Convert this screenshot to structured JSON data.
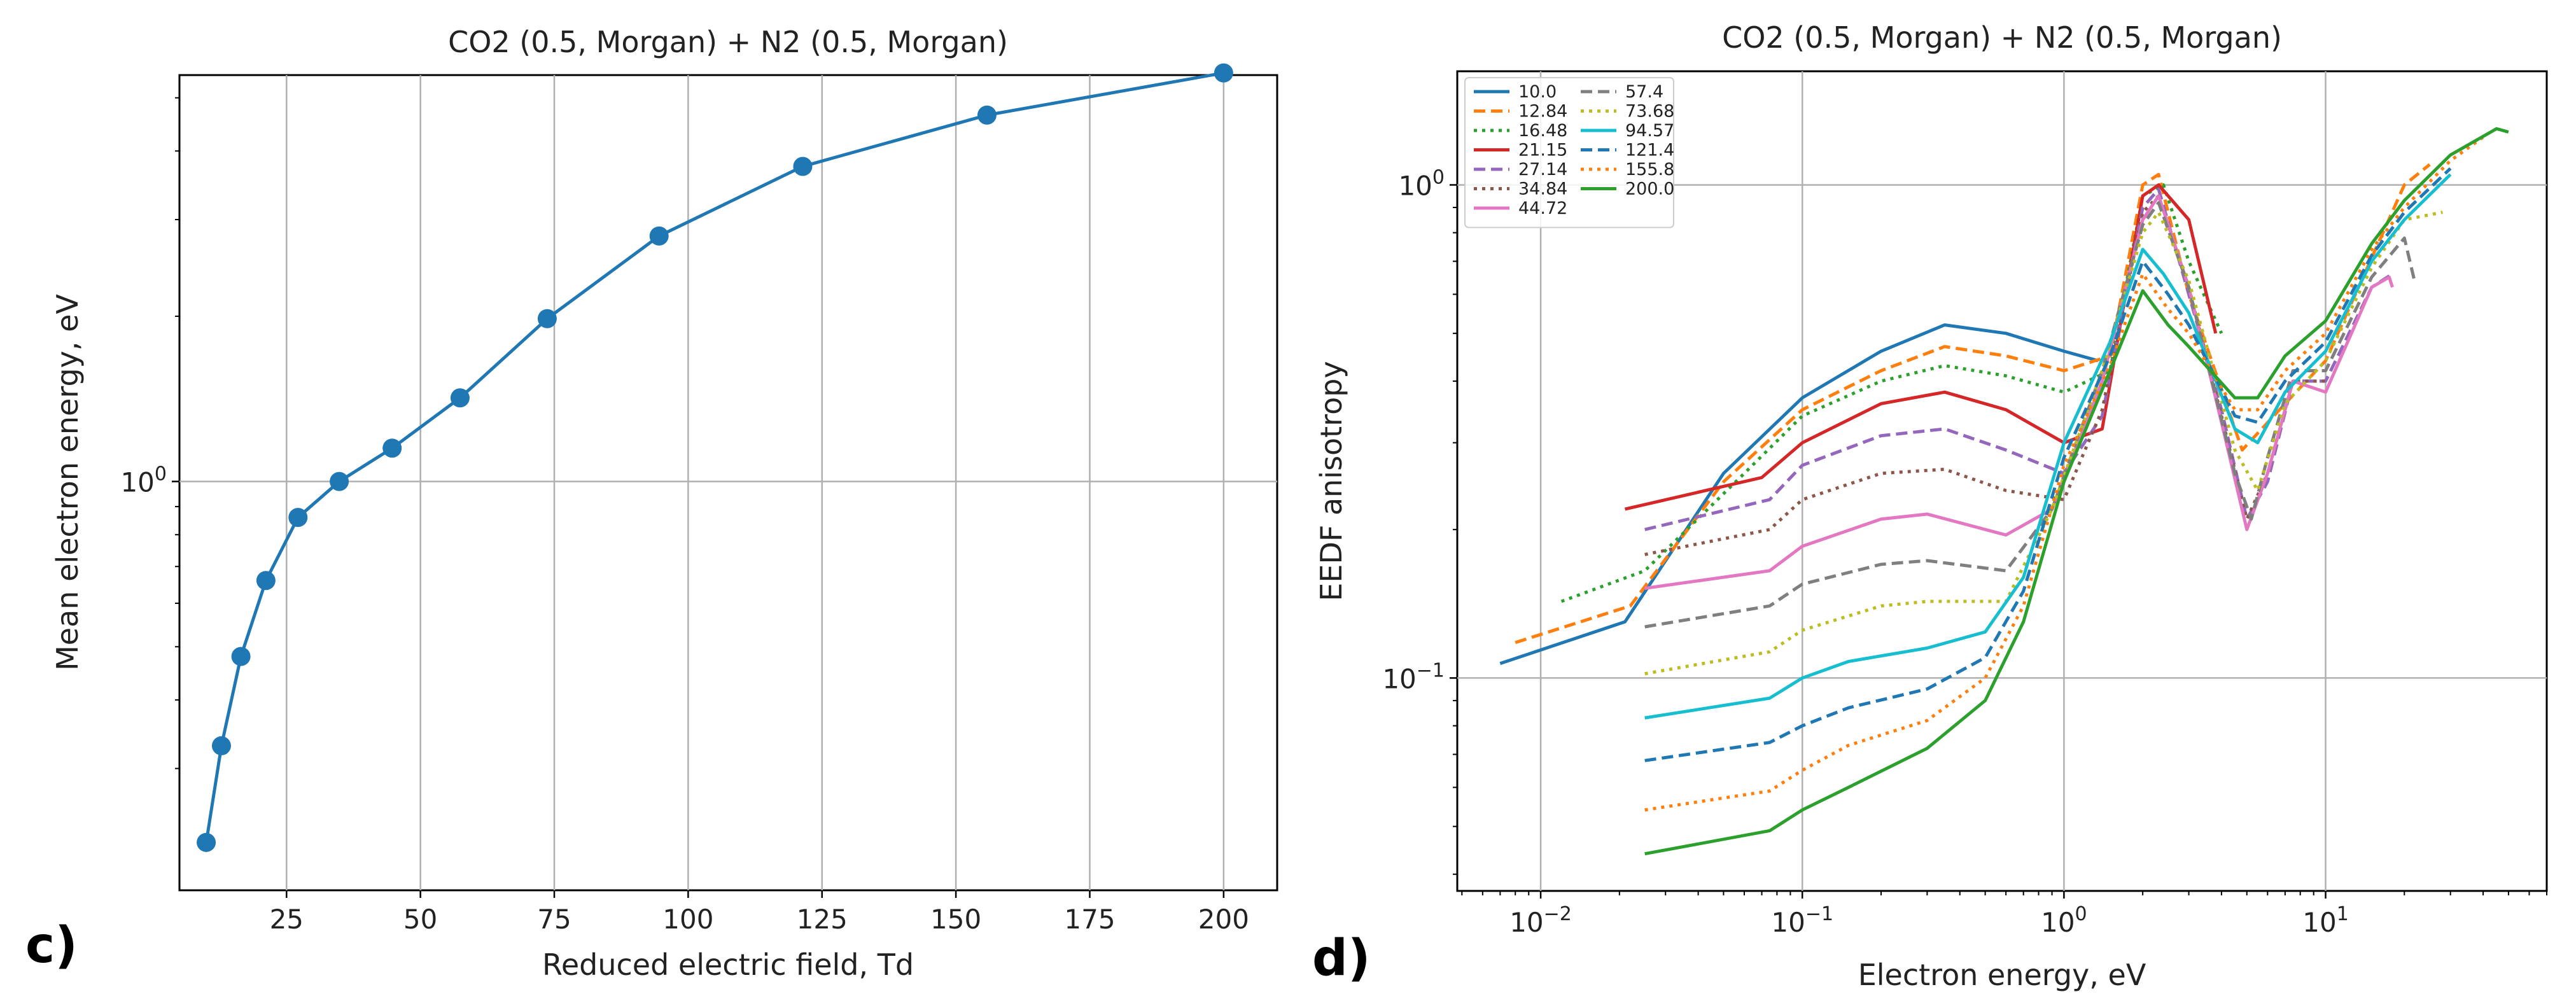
{
  "chart_data": [
    {
      "panel_label": "c)",
      "type": "line",
      "title": "CO2 (0.5, Morgan) + N2 (0.5, Morgan)",
      "xlabel": "Reduced electric field, Td",
      "ylabel": "Mean electron energy, eV",
      "xscale": "linear",
      "yscale": "log",
      "xlim": [
        5,
        210
      ],
      "ylim": [
        0.18,
        5.5
      ],
      "xticks": [
        25,
        50,
        75,
        100,
        125,
        150,
        175,
        200
      ],
      "xtick_labels": [
        "25",
        "50",
        "75",
        "100",
        "125",
        "150",
        "175",
        "200"
      ],
      "yticks": [
        1
      ],
      "ytick_labels": [
        "10^0"
      ],
      "grid": true,
      "color": "#1f77b4",
      "x": [
        10.0,
        12.84,
        16.48,
        21.15,
        27.14,
        34.84,
        44.72,
        57.4,
        73.68,
        94.57,
        121.4,
        155.8,
        200.0
      ],
      "y": [
        0.22,
        0.33,
        0.48,
        0.66,
        0.86,
        1.0,
        1.15,
        1.42,
        1.98,
        2.8,
        3.75,
        4.65,
        5.55
      ]
    },
    {
      "panel_label": "d)",
      "type": "line",
      "title": "CO2 (0.5, Morgan) + N2 (0.5, Morgan)",
      "xlabel": "Electron energy, eV",
      "ylabel": "EEDF anisotropy",
      "xscale": "log",
      "yscale": "log",
      "xlim": [
        0.0048,
        70
      ],
      "ylim": [
        0.037,
        1.7
      ],
      "xticks": [
        0.01,
        0.1,
        1,
        10
      ],
      "xtick_labels": [
        "10^-2",
        "10^-1",
        "10^0",
        "10^1"
      ],
      "yticks": [
        0.1,
        1
      ],
      "ytick_labels": [
        "10^-1",
        "10^0"
      ],
      "grid": true,
      "legend_position": "top-left",
      "series": [
        {
          "name": "10.0",
          "color": "#1f77b4",
          "style": "solid",
          "points": [
            [
              0.007,
              0.107
            ],
            [
              0.021,
              0.13
            ],
            [
              0.05,
              0.26
            ],
            [
              0.1,
              0.37
            ],
            [
              0.2,
              0.46
            ],
            [
              0.35,
              0.52
            ],
            [
              0.6,
              0.5
            ],
            [
              1.0,
              0.46
            ],
            [
              1.35,
              0.44
            ]
          ]
        },
        {
          "name": "12.84",
          "color": "#ff7f0e",
          "style": "dashed",
          "points": [
            [
              0.008,
              0.118
            ],
            [
              0.022,
              0.14
            ],
            [
              0.05,
              0.25
            ],
            [
              0.1,
              0.35
            ],
            [
              0.2,
              0.42
            ],
            [
              0.35,
              0.47
            ],
            [
              0.6,
              0.45
            ],
            [
              1.0,
              0.42
            ],
            [
              1.5,
              0.45
            ],
            [
              2.0,
              1.0
            ],
            [
              2.3,
              1.05
            ],
            [
              3.0,
              0.6
            ],
            [
              4.8,
              0.29
            ],
            [
              7.0,
              0.36
            ],
            [
              10,
              0.44
            ],
            [
              20,
              1.0
            ],
            [
              25,
              1.1
            ]
          ]
        },
        {
          "name": "16.48",
          "color": "#2ca02c",
          "style": "dotted",
          "points": [
            [
              0.012,
              0.143
            ],
            [
              0.025,
              0.165
            ],
            [
              0.06,
              0.26
            ],
            [
              0.1,
              0.34
            ],
            [
              0.2,
              0.4
            ],
            [
              0.35,
              0.43
            ],
            [
              0.6,
              0.41
            ],
            [
              1.0,
              0.38
            ],
            [
              1.5,
              0.42
            ],
            [
              2.0,
              0.95
            ],
            [
              2.4,
              1.0
            ],
            [
              3.0,
              0.7
            ],
            [
              4.0,
              0.5
            ]
          ]
        },
        {
          "name": "21.15",
          "color": "#d62728",
          "style": "solid",
          "points": [
            [
              0.021,
              0.22
            ],
            [
              0.07,
              0.255
            ],
            [
              0.1,
              0.3
            ],
            [
              0.2,
              0.36
            ],
            [
              0.35,
              0.38
            ],
            [
              0.6,
              0.35
            ],
            [
              1.0,
              0.3
            ],
            [
              1.4,
              0.32
            ],
            [
              2.0,
              0.95
            ],
            [
              2.3,
              1.0
            ],
            [
              3.0,
              0.85
            ],
            [
              3.8,
              0.5
            ]
          ]
        },
        {
          "name": "27.14",
          "color": "#9467bd",
          "style": "dashed",
          "points": [
            [
              0.025,
              0.2
            ],
            [
              0.075,
              0.23
            ],
            [
              0.1,
              0.27
            ],
            [
              0.2,
              0.31
            ],
            [
              0.35,
              0.32
            ],
            [
              0.6,
              0.29
            ],
            [
              1.0,
              0.26
            ],
            [
              1.4,
              0.34
            ],
            [
              2.0,
              0.9
            ],
            [
              2.3,
              0.98
            ],
            [
              3.0,
              0.6
            ],
            [
              4.0,
              0.35
            ],
            [
              5.0,
              0.21
            ],
            [
              6.0,
              0.25
            ],
            [
              7.5,
              0.4
            ],
            [
              10,
              0.4
            ],
            [
              15,
              0.62
            ],
            [
              18,
              0.66
            ]
          ]
        },
        {
          "name": "34.84",
          "color": "#8c564b",
          "style": "dotted",
          "points": [
            [
              0.025,
              0.178
            ],
            [
              0.075,
              0.2
            ],
            [
              0.1,
              0.23
            ],
            [
              0.2,
              0.26
            ],
            [
              0.35,
              0.265
            ],
            [
              0.6,
              0.24
            ],
            [
              1.0,
              0.23
            ],
            [
              1.4,
              0.35
            ],
            [
              2.0,
              0.88
            ],
            [
              2.3,
              0.95
            ],
            [
              3.0,
              0.62
            ],
            [
              4.0,
              0.34
            ],
            [
              5.0,
              0.21
            ],
            [
              6.0,
              0.26
            ],
            [
              7.5,
              0.4
            ],
            [
              10,
              0.4
            ]
          ]
        },
        {
          "name": "44.72",
          "color": "#e377c2",
          "style": "solid",
          "points": [
            [
              0.025,
              0.152
            ],
            [
              0.075,
              0.165
            ],
            [
              0.1,
              0.185
            ],
            [
              0.2,
              0.21
            ],
            [
              0.3,
              0.215
            ],
            [
              0.6,
              0.195
            ],
            [
              0.9,
              0.22
            ],
            [
              1.4,
              0.4
            ],
            [
              2.0,
              0.85
            ],
            [
              2.3,
              0.95
            ],
            [
              3.0,
              0.62
            ],
            [
              4.0,
              0.33
            ],
            [
              5.0,
              0.2
            ],
            [
              6.0,
              0.26
            ],
            [
              7.5,
              0.4
            ],
            [
              10,
              0.38
            ],
            [
              15,
              0.62
            ],
            [
              17.5,
              0.65
            ],
            [
              18,
              0.62
            ]
          ]
        },
        {
          "name": "57.4",
          "color": "#7f7f7f",
          "style": "dashed",
          "points": [
            [
              0.025,
              0.127
            ],
            [
              0.075,
              0.14
            ],
            [
              0.1,
              0.155
            ],
            [
              0.2,
              0.17
            ],
            [
              0.3,
              0.173
            ],
            [
              0.6,
              0.165
            ],
            [
              0.9,
              0.22
            ],
            [
              1.4,
              0.42
            ],
            [
              2.0,
              0.83
            ],
            [
              2.3,
              0.92
            ],
            [
              3.0,
              0.62
            ],
            [
              4.5,
              0.26
            ],
            [
              5.2,
              0.21
            ],
            [
              6.0,
              0.28
            ],
            [
              7.5,
              0.42
            ],
            [
              10,
              0.42
            ],
            [
              15,
              0.65
            ],
            [
              20,
              0.78
            ],
            [
              22,
              0.63
            ]
          ]
        },
        {
          "name": "73.68",
          "color": "#bcbd22",
          "style": "dotted",
          "points": [
            [
              0.025,
              0.102
            ],
            [
              0.075,
              0.113
            ],
            [
              0.1,
              0.125
            ],
            [
              0.2,
              0.14
            ],
            [
              0.3,
              0.143
            ],
            [
              0.6,
              0.143
            ],
            [
              0.9,
              0.22
            ],
            [
              1.4,
              0.42
            ],
            [
              2.0,
              0.8
            ],
            [
              2.3,
              0.88
            ],
            [
              3.0,
              0.64
            ],
            [
              4.5,
              0.29
            ],
            [
              5.5,
              0.24
            ],
            [
              7.0,
              0.36
            ],
            [
              10,
              0.44
            ],
            [
              15,
              0.68
            ],
            [
              20,
              0.85
            ],
            [
              28,
              0.88
            ]
          ]
        },
        {
          "name": "94.57",
          "color": "#17becf",
          "style": "solid",
          "points": [
            [
              0.025,
              0.083
            ],
            [
              0.075,
              0.091
            ],
            [
              0.1,
              0.1
            ],
            [
              0.15,
              0.108
            ],
            [
              0.3,
              0.115
            ],
            [
              0.5,
              0.124
            ],
            [
              0.7,
              0.16
            ],
            [
              1.0,
              0.3
            ],
            [
              1.5,
              0.48
            ],
            [
              2.0,
              0.74
            ],
            [
              2.4,
              0.66
            ],
            [
              3.0,
              0.55
            ],
            [
              4.5,
              0.32
            ],
            [
              5.5,
              0.3
            ],
            [
              7.0,
              0.38
            ],
            [
              10,
              0.46
            ],
            [
              15,
              0.7
            ],
            [
              20,
              0.85
            ],
            [
              30,
              1.05
            ]
          ]
        },
        {
          "name": "121.4",
          "color": "#1f77b4",
          "style": "dashed",
          "points": [
            [
              0.025,
              0.068
            ],
            [
              0.075,
              0.074
            ],
            [
              0.1,
              0.08
            ],
            [
              0.15,
              0.087
            ],
            [
              0.3,
              0.095
            ],
            [
              0.5,
              0.11
            ],
            [
              0.7,
              0.15
            ],
            [
              1.0,
              0.28
            ],
            [
              1.5,
              0.45
            ],
            [
              2.0,
              0.7
            ],
            [
              2.5,
              0.6
            ],
            [
              3.0,
              0.52
            ],
            [
              4.5,
              0.34
            ],
            [
              5.5,
              0.33
            ],
            [
              7.0,
              0.4
            ],
            [
              10,
              0.48
            ],
            [
              15,
              0.72
            ],
            [
              20,
              0.88
            ],
            [
              30,
              1.08
            ]
          ]
        },
        {
          "name": "155.8",
          "color": "#ff7f0e",
          "style": "dotted",
          "points": [
            [
              0.025,
              0.054
            ],
            [
              0.075,
              0.059
            ],
            [
              0.1,
              0.065
            ],
            [
              0.15,
              0.073
            ],
            [
              0.3,
              0.082
            ],
            [
              0.5,
              0.1
            ],
            [
              0.7,
              0.14
            ],
            [
              1.0,
              0.27
            ],
            [
              1.5,
              0.43
            ],
            [
              2.0,
              0.66
            ],
            [
              2.5,
              0.56
            ],
            [
              3.0,
              0.5
            ],
            [
              4.5,
              0.35
            ],
            [
              5.5,
              0.35
            ],
            [
              7.0,
              0.42
            ],
            [
              10,
              0.5
            ],
            [
              15,
              0.74
            ],
            [
              20,
              0.9
            ],
            [
              30,
              1.12
            ],
            [
              40,
              1.25
            ]
          ]
        },
        {
          "name": "200.0",
          "color": "#2ca02c",
          "style": "solid",
          "points": [
            [
              0.025,
              0.044
            ],
            [
              0.075,
              0.049
            ],
            [
              0.1,
              0.054
            ],
            [
              0.15,
              0.06
            ],
            [
              0.3,
              0.072
            ],
            [
              0.5,
              0.09
            ],
            [
              0.7,
              0.13
            ],
            [
              1.0,
              0.25
            ],
            [
              1.5,
              0.42
            ],
            [
              2.0,
              0.61
            ],
            [
              2.5,
              0.52
            ],
            [
              3.0,
              0.47
            ],
            [
              4.5,
              0.37
            ],
            [
              5.5,
              0.37
            ],
            [
              7.0,
              0.45
            ],
            [
              10,
              0.53
            ],
            [
              15,
              0.76
            ],
            [
              20,
              0.93
            ],
            [
              30,
              1.15
            ],
            [
              45,
              1.3
            ],
            [
              50,
              1.28
            ]
          ]
        }
      ]
    }
  ]
}
